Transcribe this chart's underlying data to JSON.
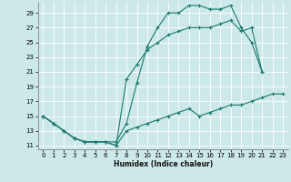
{
  "bg_color": "#cce8e8",
  "grid_color": "#b0d8d8",
  "line_color": "#1a7a6e",
  "xlim": [
    -0.5,
    23.5
  ],
  "ylim": [
    10.5,
    30.5
  ],
  "xticks": [
    0,
    1,
    2,
    3,
    4,
    5,
    6,
    7,
    8,
    9,
    10,
    11,
    12,
    13,
    14,
    15,
    16,
    17,
    18,
    19,
    20,
    21,
    22,
    23
  ],
  "yticks": [
    11,
    13,
    15,
    17,
    19,
    21,
    23,
    25,
    27,
    29
  ],
  "xlabel": "Humidex (Indice chaleur)",
  "series": [
    {
      "x": [
        0,
        1,
        2,
        3,
        4,
        5,
        6,
        7,
        8,
        9,
        10,
        11,
        12,
        13,
        14,
        15,
        16,
        17,
        18,
        19,
        20,
        21
      ],
      "y": [
        15,
        14,
        13,
        12,
        11.5,
        11.5,
        11.5,
        11.5,
        14,
        19.5,
        24.5,
        27,
        29,
        29,
        30,
        30,
        29.5,
        29.5,
        30,
        27,
        25,
        21
      ]
    },
    {
      "x": [
        0,
        1,
        2,
        3,
        4,
        5,
        6,
        7,
        8,
        9,
        10,
        11,
        12,
        13,
        14,
        15,
        16,
        17,
        18,
        19,
        20,
        21
      ],
      "y": [
        15,
        14,
        13,
        12,
        11.5,
        11.5,
        11.5,
        11,
        20,
        22,
        24,
        25,
        26,
        26.5,
        27,
        27,
        27,
        27.5,
        28,
        26.5,
        27,
        21
      ]
    },
    {
      "x": [
        0,
        1,
        2,
        3,
        4,
        5,
        6,
        7,
        8,
        9,
        10,
        11,
        12,
        13,
        14,
        15,
        16,
        17,
        18,
        19,
        20,
        21,
        22,
        23
      ],
      "y": [
        15,
        14,
        13,
        12,
        11.5,
        11.5,
        11.5,
        11,
        13,
        13.5,
        14,
        14.5,
        15,
        15.5,
        16,
        15,
        15.5,
        16,
        16.5,
        16.5,
        17,
        17.5,
        18,
        18
      ]
    }
  ]
}
